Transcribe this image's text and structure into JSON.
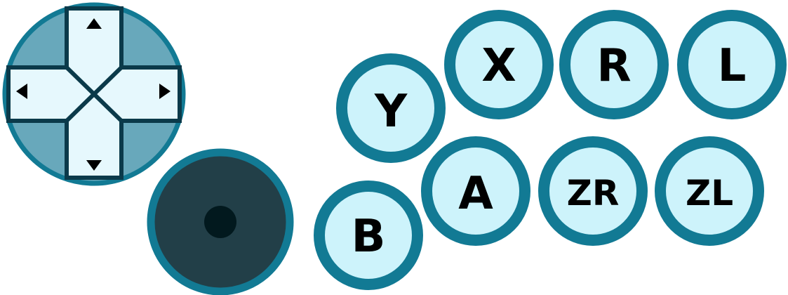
{
  "controller": {
    "colors": {
      "ring": "#127a94",
      "button_face": "#cdf3fb",
      "dpad_base": "#68a8bb",
      "dpad_arm": "#e6f8fd",
      "dpad_outline": "#0b3a4a",
      "dpad_arrow": "#000000",
      "stick_base": "#223f48",
      "stick_nub": "#02191e"
    },
    "dpad": {
      "up_icon": "triangle-up",
      "down_icon": "triangle-down",
      "left_icon": "triangle-left",
      "right_icon": "triangle-right"
    },
    "joystick": {
      "name": "analog-stick"
    },
    "buttons": {
      "y": "Y",
      "x": "X",
      "r": "R",
      "l": "L",
      "b": "B",
      "a": "A",
      "zr": "ZR",
      "zl": "ZL"
    }
  }
}
